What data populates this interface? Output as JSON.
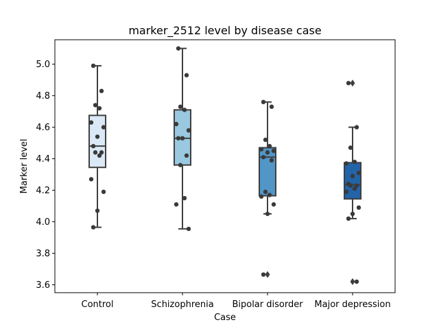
{
  "chart_data": {
    "type": "box",
    "title": "marker_2512 level by disease case",
    "xlabel": "Case",
    "ylabel": "Marker level",
    "ylim": [
      3.55,
      5.155
    ],
    "yticks": [
      "3.6",
      "3.8",
      "4.0",
      "4.2",
      "4.4",
      "4.6",
      "4.8",
      "5.0"
    ],
    "grid": false,
    "categories": [
      "Control",
      "Schizophrenia",
      "Bipolar disorder",
      "Major depression"
    ],
    "colors": [
      "#dbe9f6",
      "#9ac8e0",
      "#5296c8",
      "#2363a8"
    ],
    "point_color": "#3a3a3a",
    "boxes": [
      {
        "q1": 4.345,
        "median": 4.48,
        "q3": 4.675,
        "whisker_low": 3.965,
        "whisker_high": 4.99,
        "outliers": []
      },
      {
        "q1": 4.36,
        "median": 4.53,
        "q3": 4.71,
        "whisker_low": 3.955,
        "whisker_high": 5.1,
        "outliers": []
      },
      {
        "q1": 4.165,
        "median": 4.41,
        "q3": 4.47,
        "whisker_low": 4.05,
        "whisker_high": 4.76,
        "outliers": [
          3.665
        ]
      },
      {
        "q1": 4.145,
        "median": 4.235,
        "q3": 4.375,
        "whisker_low": 4.02,
        "whisker_high": 4.6,
        "outliers": [
          4.88,
          3.62
        ]
      }
    ],
    "points": [
      [
        4.99,
        4.83,
        4.74,
        4.72,
        4.63,
        4.6,
        4.54,
        4.48,
        4.44,
        4.44,
        4.42,
        4.27,
        4.19,
        4.07,
        3.965
      ],
      [
        5.1,
        4.93,
        4.73,
        4.71,
        4.62,
        4.58,
        4.53,
        4.53,
        4.42,
        4.36,
        4.15,
        4.11,
        3.955
      ],
      [
        4.76,
        4.73,
        4.52,
        4.48,
        4.46,
        4.45,
        4.44,
        4.41,
        4.39,
        4.19,
        4.17,
        4.16,
        4.11,
        4.05,
        3.665
      ],
      [
        4.88,
        4.6,
        4.47,
        4.38,
        4.37,
        4.31,
        4.29,
        4.24,
        4.23,
        4.23,
        4.21,
        4.19,
        4.09,
        4.05,
        4.02,
        3.62
      ]
    ]
  }
}
